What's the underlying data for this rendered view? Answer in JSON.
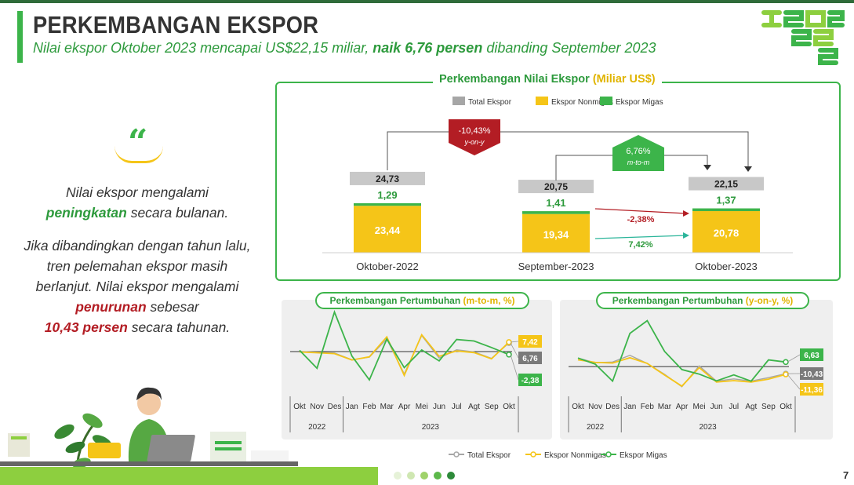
{
  "header": {
    "title": "PERKEMBANGAN EKSPOR",
    "subtitle_pre": "Nilai ekspor Oktober 2023 mencapai US$22,15 miliar, ",
    "subtitle_bold": "naik 6,76 persen",
    "subtitle_post": " dibanding September 2023"
  },
  "logo": {
    "text": "ST2023"
  },
  "narrative": {
    "quote_mark": "“",
    "p1_a": "Nilai ekspor mengalami",
    "p1_b": "peningkatan",
    "p1_c": " secara bulanan.",
    "p2_a": "Jika dibandingkan dengan tahun lalu, tren pelemahan ekspor masih berlanjut. Nilai ekspor mengalami ",
    "p2_b": "penurunan",
    "p2_c": " sebesar",
    "p2_d": "10,43 persen",
    "p2_e": " secara tahunan."
  },
  "colors": {
    "total": "#a6a6a6",
    "nonmigas": "#f5c518",
    "migas": "#3cb44a",
    "red": "#b31d24",
    "accent_green": "#2d9a3c"
  },
  "page": {
    "number": "7"
  },
  "chart_data": [
    {
      "type": "bar",
      "title_a": "Perkembangan Nilai Ekspor ",
      "title_b": "(Miliar US$)",
      "legend": [
        "Total Ekspor",
        "Ekspor Nonmigas",
        "Ekspor Migas"
      ],
      "categories": [
        "Oktober-2022",
        "September-2023",
        "Oktober-2023"
      ],
      "series": [
        {
          "name": "Ekspor Nonmigas",
          "values": [
            23.44,
            19.34,
            20.78
          ],
          "labels": [
            "23,44",
            "19,34",
            "20,78"
          ]
        },
        {
          "name": "Ekspor Migas",
          "values": [
            1.29,
            1.41,
            1.37
          ],
          "labels": [
            "1,29",
            "1,41",
            "1,37"
          ]
        }
      ],
      "totals": [
        24.73,
        20.75,
        22.15
      ],
      "total_labels": [
        "24,73",
        "20,75",
        "22,15"
      ],
      "annotations": {
        "yoy_value": "-10,43%",
        "yoy_label": "y-on-y",
        "mtm_value": "6,76%",
        "mtm_label": "m-to-m",
        "migas_change": "-2,38%",
        "nonmigas_change": "7,42%"
      }
    },
    {
      "type": "line",
      "title_a": "Perkembangan Pertumbuhan ",
      "title_b": "(m-to-m, %)",
      "x": [
        "Okt",
        "Nov",
        "Des",
        "Jan",
        "Feb",
        "Mar",
        "Apr",
        "Mei",
        "Jun",
        "Jul",
        "Agt",
        "Sep",
        "Okt"
      ],
      "years": [
        "2022",
        "2023"
      ],
      "ylim": [
        -32,
        32
      ],
      "series": [
        {
          "name": "Total Ekspor",
          "values": [
            0.1,
            -0.5,
            -1.1,
            -6.4,
            -4.4,
            9.9,
            -17.6,
            12.6,
            -5.1,
            1.4,
            -0.3,
            -5.3,
            6.76
          ]
        },
        {
          "name": "Ekspor Nonmigas",
          "values": [
            -0.3,
            -0.9,
            -1.6,
            -6.6,
            -4.1,
            11.5,
            -18.7,
            13.2,
            -3.7,
            0.5,
            -0.8,
            -5.7,
            7.42
          ]
        },
        {
          "name": "Ekspor Migas",
          "values": [
            1.0,
            -13.1,
            31.0,
            -3.5,
            -22.2,
            9.8,
            -12.6,
            1.3,
            -7.3,
            9.5,
            8.3,
            3.2,
            -2.38
          ]
        }
      ],
      "end_labels": [
        "7,42",
        "6,76",
        "-2,38"
      ]
    },
    {
      "type": "line",
      "title_a": "Perkembangan Pertumbuhan ",
      "title_b": "(y-on-y, %)",
      "x": [
        "Okt",
        "Nov",
        "Des",
        "Jan",
        "Feb",
        "Mar",
        "Apr",
        "Mei",
        "Jun",
        "Jul",
        "Agt",
        "Sep",
        "Okt"
      ],
      "years": [
        "2022",
        "2023"
      ],
      "ylim": [
        -40,
        70
      ],
      "series": [
        {
          "name": "Total Ekspor",
          "values": [
            12.3,
            5.6,
            6.6,
            16.4,
            4.5,
            -11.3,
            -29.4,
            0.9,
            -21.2,
            -18.0,
            -21.2,
            -16.2,
            -10.43
          ]
        },
        {
          "name": "Ekspor Nonmigas",
          "values": [
            9.8,
            6.1,
            5.2,
            12.9,
            4.6,
            -12.3,
            -28.6,
            -1.6,
            -22.6,
            -20.5,
            -22.6,
            -18.4,
            -11.36
          ]
        },
        {
          "name": "Ekspor Migas",
          "values": [
            12.5,
            3.5,
            -21.3,
            48.5,
            67.0,
            22.2,
            -4.4,
            -11.0,
            -20.9,
            -12.1,
            -21.3,
            9.7,
            6.63
          ]
        }
      ],
      "end_labels": [
        "6,63",
        "-10,43",
        "-11,36"
      ]
    }
  ]
}
